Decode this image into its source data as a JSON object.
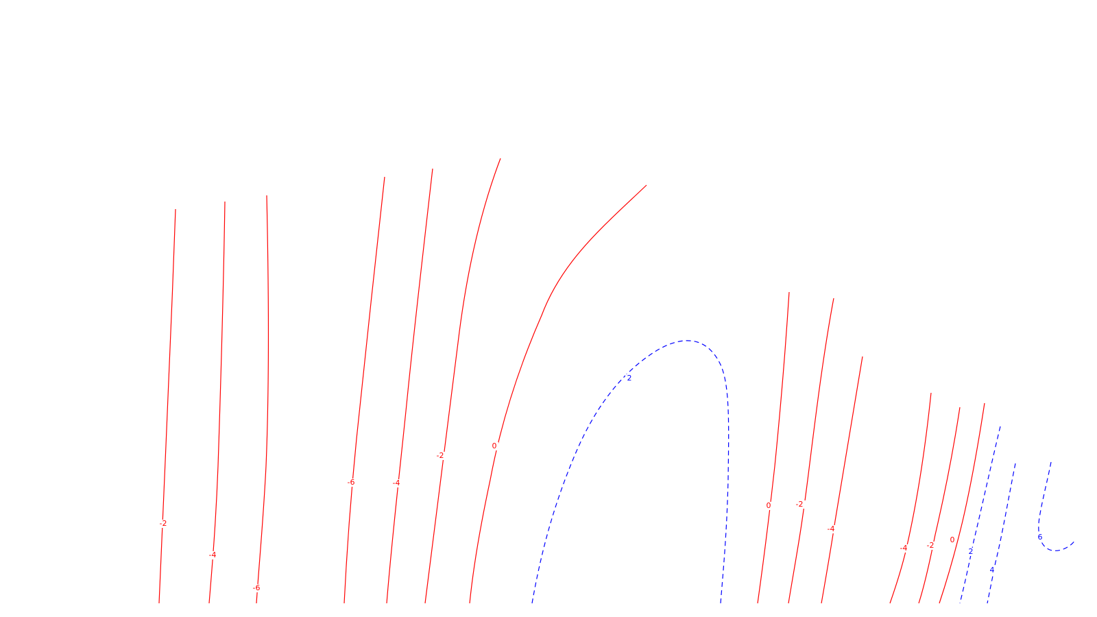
{
  "colors": {
    "negative": "#ff0000",
    "positive": "#0000ff",
    "background": "#ffffff"
  },
  "contours": [
    {
      "label": "-2",
      "style": "solid",
      "sign": "negative"
    },
    {
      "label": "-4",
      "style": "solid",
      "sign": "negative"
    },
    {
      "label": "-6",
      "style": "solid",
      "sign": "negative"
    },
    {
      "label": "-6",
      "style": "solid",
      "sign": "negative"
    },
    {
      "label": "-4",
      "style": "solid",
      "sign": "negative"
    },
    {
      "label": "-2",
      "style": "solid",
      "sign": "negative"
    },
    {
      "label": "0",
      "style": "solid",
      "sign": "negative"
    },
    {
      "label": "2",
      "style": "dashed",
      "sign": "positive"
    },
    {
      "label": "0",
      "style": "solid",
      "sign": "negative"
    },
    {
      "label": "-2",
      "style": "solid",
      "sign": "negative"
    },
    {
      "label": "-4",
      "style": "solid",
      "sign": "negative"
    },
    {
      "label": "-4",
      "style": "solid",
      "sign": "negative"
    },
    {
      "label": "-2",
      "style": "solid",
      "sign": "negative"
    },
    {
      "label": "0",
      "style": "solid",
      "sign": "negative"
    },
    {
      "label": "2",
      "style": "dashed",
      "sign": "positive"
    },
    {
      "label": "4",
      "style": "dashed",
      "sign": "positive"
    },
    {
      "label": "6",
      "style": "dashed",
      "sign": "positive"
    }
  ]
}
